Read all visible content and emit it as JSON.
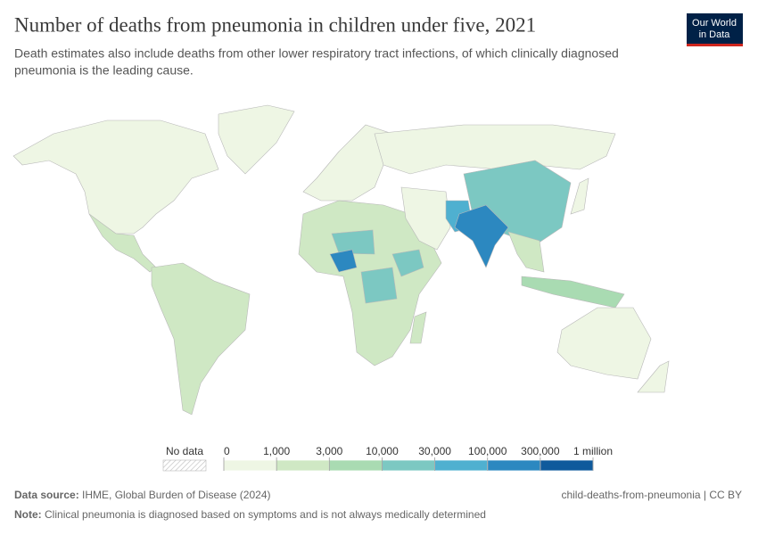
{
  "header": {
    "title": "Number of deaths from pneumonia in children under five, 2021",
    "subtitle_lines": [
      "Death estimates also include deaths from other lower respiratory tract infections, of which clinically diagnosed",
      "pneumonia is the leading cause."
    ]
  },
  "logo": {
    "lines": [
      "Our World",
      "in Data"
    ]
  },
  "legend": {
    "no_data_label": "No data",
    "ticks": [
      0,
      {
        "value": 1000,
        "label": "1,000"
      },
      {
        "value": 3000,
        "label": "3,000"
      },
      {
        "value": 10000,
        "label": "10,000"
      },
      {
        "value": 30000,
        "label": "30,000"
      },
      {
        "value": 100000,
        "label": "100,000"
      },
      {
        "value": 300000,
        "label": "300,000"
      },
      {
        "value": 1000000,
        "label": "1 million"
      }
    ],
    "colors": [
      "#eef6e4",
      "#cfe8c4",
      "#a9dbb2",
      "#7cc8c2",
      "#4fb0d0",
      "#2c88c0",
      "#0f5a9c"
    ]
  },
  "footer": {
    "source_label": "Data source:",
    "source": "IHME, Global Burden of Disease (2024)",
    "slug": "child-deaths-from-pneumonia | CC BY",
    "note_label": "Note:",
    "note": "Clinical pneumonia is diagnosed based on symptoms and is not always medically determined"
  }
}
